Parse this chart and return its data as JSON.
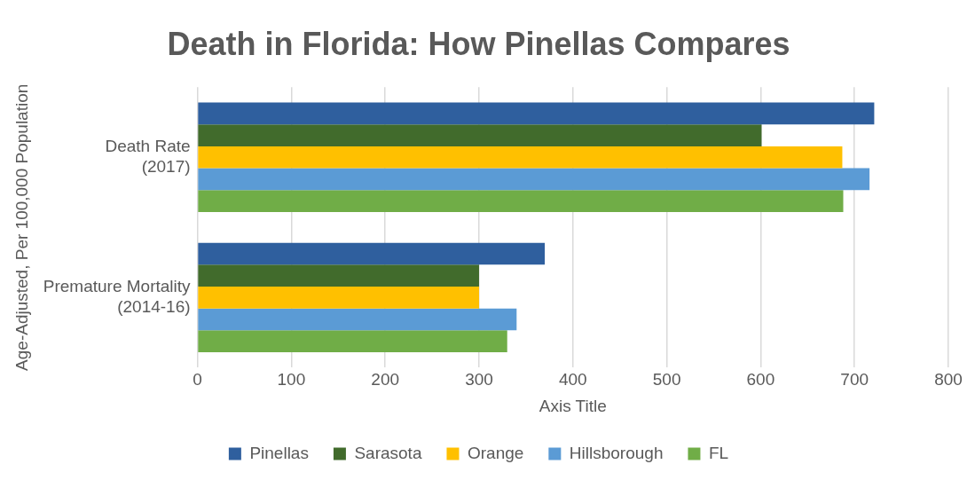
{
  "chart_data": {
    "type": "bar",
    "orientation": "horizontal",
    "title": "Death in Florida: How Pinellas Compares",
    "xlabel": "Axis Title",
    "ylabel": "Age-Adjusted, Per 100,000 Population",
    "categories": [
      "Death Rate (2017)",
      "Premature Mortality (2014-16)"
    ],
    "series": [
      {
        "name": "Pinellas",
        "color": "#2f5f9e",
        "values": [
          721,
          370
        ]
      },
      {
        "name": "Sarasota",
        "color": "#416b2c",
        "values": [
          601,
          300
        ]
      },
      {
        "name": "Orange",
        "color": "#ffc000",
        "values": [
          687,
          300
        ]
      },
      {
        "name": "Hillsborough",
        "color": "#5b9bd5",
        "values": [
          716,
          340
        ]
      },
      {
        "name": "FL",
        "color": "#70ad47",
        "values": [
          688,
          330
        ]
      }
    ],
    "xlim": [
      0,
      800
    ],
    "xticks": [
      0,
      100,
      200,
      300,
      400,
      500,
      600,
      700,
      800
    ],
    "grid": "x",
    "legend": "bottom"
  }
}
